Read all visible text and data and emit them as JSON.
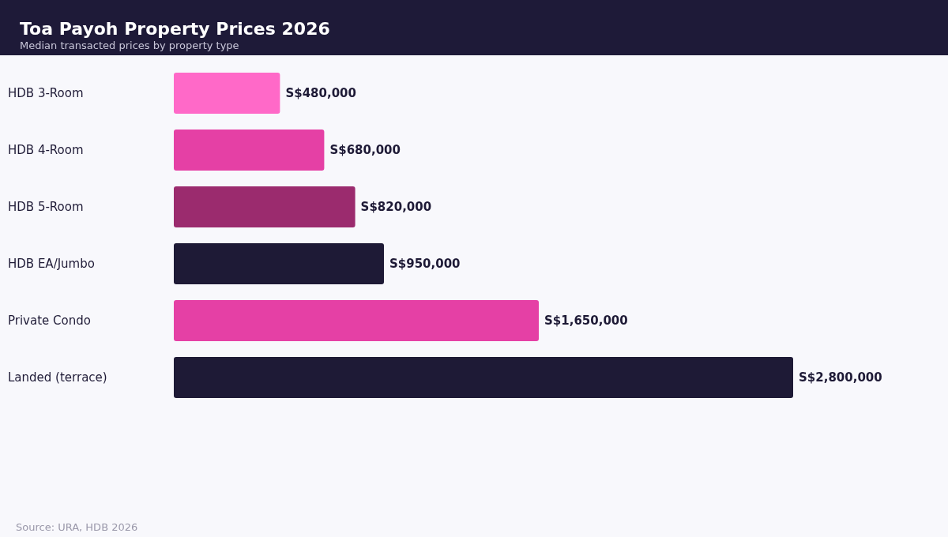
{
  "chart_data": {
    "type": "bar",
    "orientation": "horizontal",
    "title": "Toa Payoh Property Prices 2026",
    "subtitle": "Median transacted prices by property type",
    "categories": [
      "HDB 3-Room",
      "HDB 4-Room",
      "HDB 5-Room",
      "HDB EA/Jumbo",
      "Private Condo",
      "Landed (terrace)"
    ],
    "values": [
      480000,
      680000,
      820000,
      950000,
      1650000,
      2800000
    ],
    "colors": [
      "#ff69c8",
      "#e540a5",
      "#9b2b6e",
      "#1e1a36",
      "#e540a5",
      "#1e1a36"
    ],
    "value_labels": [
      "S$480,000",
      "S$680,000",
      "S$820,000",
      "S$950,000",
      "S$1,650,000",
      "S$2,800,000"
    ],
    "annotations": [
      "Source: URA, HDB 2026"
    ]
  }
}
